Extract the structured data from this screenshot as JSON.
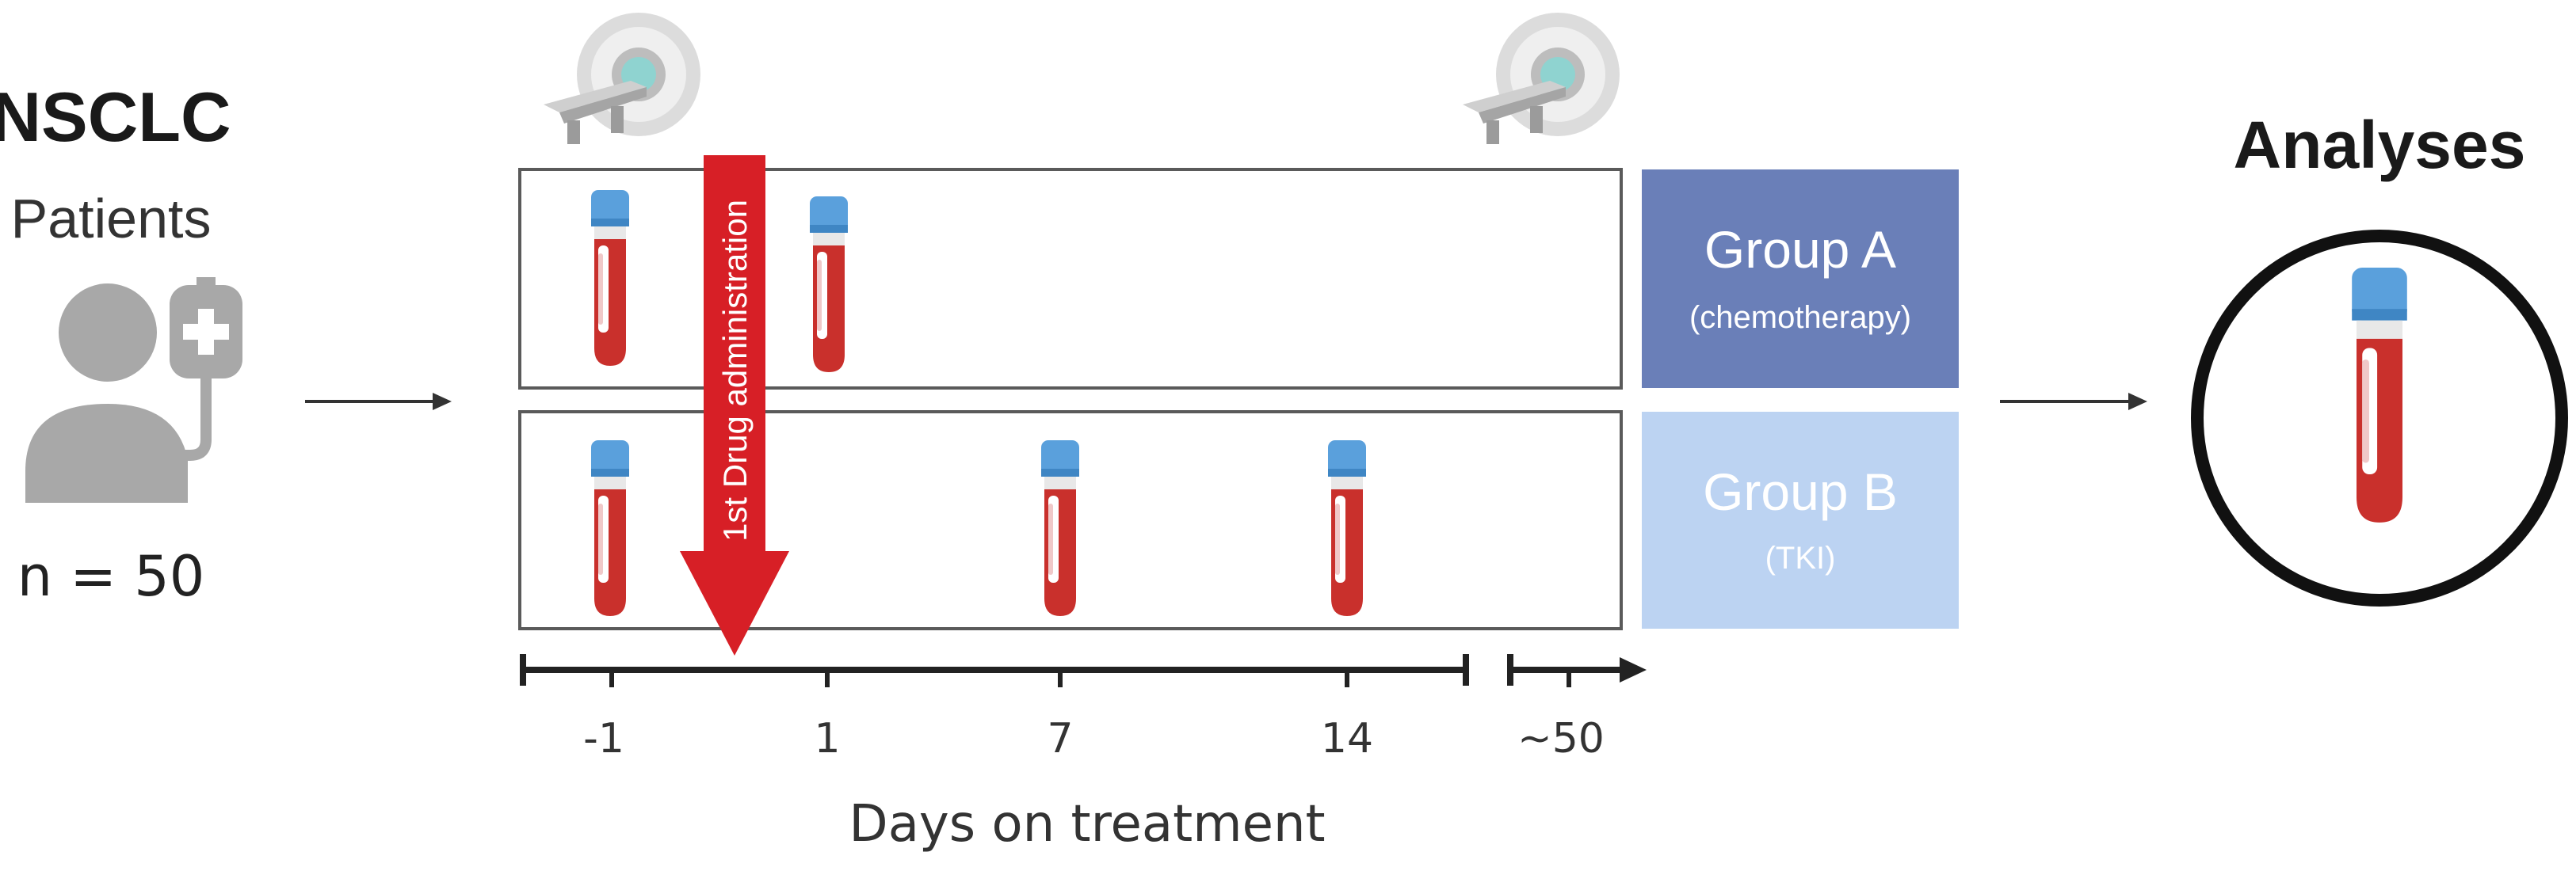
{
  "patients": {
    "title": "NSCLC",
    "subtitle": "Patients",
    "count": "n = 50"
  },
  "drug_arrow": {
    "label": "1st Drug administration",
    "color": "#d71f26"
  },
  "groups": [
    {
      "name": "Group A",
      "sub": "(chemotherapy)",
      "color": "#6a7fb8"
    },
    {
      "name": "Group B",
      "sub": "(TKI)",
      "color": "#bcd3f2"
    }
  ],
  "timeline": {
    "ticks": [
      "-1",
      "1",
      "7",
      "14",
      "~50"
    ],
    "axis_label": "Days on treatment"
  },
  "analyses": {
    "title": "Analyses"
  },
  "icons": {
    "patient": "patient-iv-icon",
    "scanner": "ct-scanner-icon",
    "tube": "blood-tube-icon"
  },
  "colors": {
    "tube_cap": "#5aa0dc",
    "tube_blood": "#c9302c",
    "patient_gray": "#a8a8a8"
  }
}
